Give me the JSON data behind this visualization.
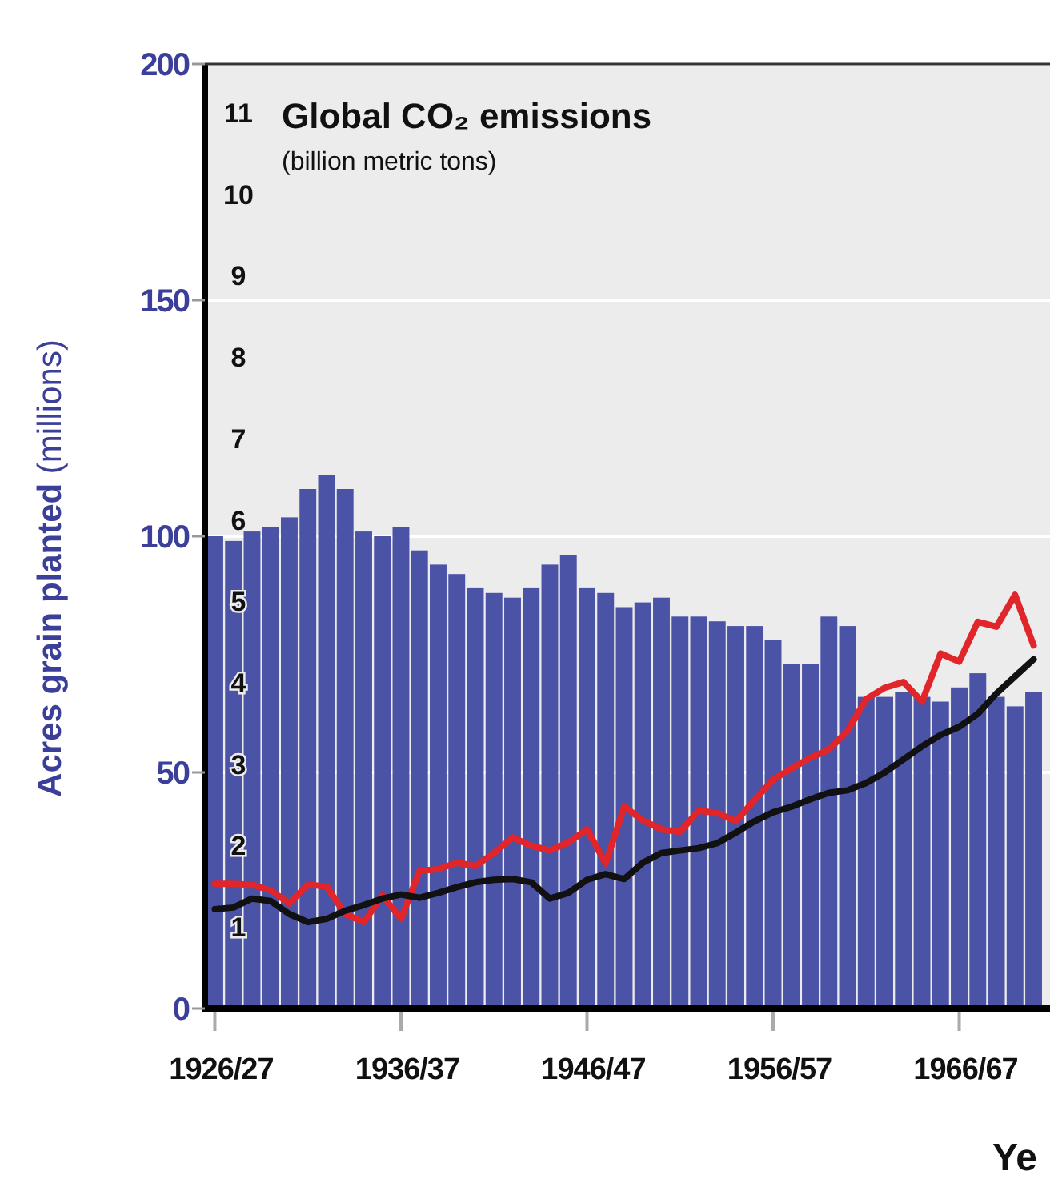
{
  "chart_data": {
    "type": "bar",
    "ylabel": "Acres grain planted (millions)",
    "y2label": "Global CO₂ emissions\n(billion metric tons)",
    "xlabel": "Ye",
    "categories": [
      "1926/27",
      null,
      null,
      null,
      null,
      null,
      null,
      null,
      null,
      null,
      "1936/37",
      null,
      null,
      null,
      null,
      null,
      null,
      null,
      null,
      null,
      "1946/47",
      null,
      null,
      null,
      null,
      null,
      null,
      null,
      null,
      null,
      "1956/57",
      null,
      null,
      null,
      null,
      null,
      null,
      null,
      null,
      null,
      "1966/67",
      null,
      null,
      null,
      null
    ],
    "series": [
      {
        "color": "#4b53a6",
        "values": [
          100,
          99,
          101,
          102,
          104,
          110,
          113,
          110,
          101,
          100,
          102,
          97,
          94,
          92,
          89,
          88,
          87,
          89,
          94,
          96,
          89,
          88,
          85,
          86,
          87,
          83,
          83,
          82,
          81,
          81,
          78,
          73,
          73,
          83,
          81,
          66,
          66,
          67,
          66,
          65,
          68,
          71,
          66,
          64,
          67
        ]
      },
      {
        "type": "line",
        "axis": "y2",
        "color": "#e0252b",
        "values": [
          1.53,
          1.53,
          1.52,
          1.45,
          1.29,
          1.52,
          1.5,
          1.16,
          1.06,
          1.39,
          1.1,
          1.69,
          1.71,
          1.79,
          1.75,
          1.91,
          2.1,
          2.0,
          1.94,
          2.04,
          2.2,
          1.78,
          2.48,
          2.31,
          2.2,
          2.17,
          2.43,
          2.4,
          2.3,
          2.56,
          2.81,
          2.95,
          3.08,
          3.18,
          3.41,
          3.8,
          3.94,
          4.01,
          3.77,
          4.36,
          4.26,
          4.75,
          4.69,
          5.08,
          4.46
        ]
      },
      {
        "type": "line",
        "axis": "y2",
        "color": "#111111",
        "values": [
          1.22,
          1.24,
          1.35,
          1.32,
          1.16,
          1.06,
          1.1,
          1.2,
          1.27,
          1.35,
          1.4,
          1.36,
          1.42,
          1.49,
          1.55,
          1.58,
          1.59,
          1.55,
          1.35,
          1.42,
          1.58,
          1.65,
          1.59,
          1.79,
          1.91,
          1.94,
          1.97,
          2.03,
          2.16,
          2.3,
          2.41,
          2.48,
          2.57,
          2.65,
          2.68,
          2.77,
          2.9,
          3.06,
          3.22,
          3.36,
          3.46,
          3.62,
          3.87,
          4.08,
          4.29
        ]
      }
    ],
    "ylim": [
      0,
      200
    ],
    "yticks": [
      0,
      50,
      100,
      150,
      200
    ],
    "y2lim": [
      0,
      11.6
    ],
    "y2ticks": [
      1,
      2,
      3,
      4,
      5,
      6,
      7,
      8,
      9,
      10,
      11
    ],
    "grid": "y"
  }
}
